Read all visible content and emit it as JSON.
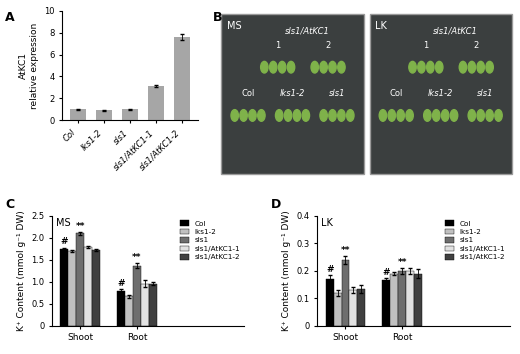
{
  "chart_data": [
    {
      "panel": "A",
      "type": "bar",
      "y_label": "AtKC1\nrelative expression",
      "categories": [
        "Col",
        "lks1-2",
        "sls1",
        "sls1/AtKC1-1",
        "sls1/AtKC1-2"
      ],
      "values": [
        1.0,
        0.9,
        1.0,
        3.1,
        7.6
      ],
      "errors": [
        0.05,
        0.05,
        0.05,
        0.1,
        0.25
      ],
      "color": "#a6a6a6",
      "ylim": [
        0,
        10
      ],
      "yticks": [
        0,
        2,
        4,
        6,
        8,
        10
      ]
    },
    {
      "panel": "C",
      "type": "bar",
      "title": "MS",
      "y_label": "K⁺ Content (mmol g⁻¹ DW)",
      "categories": [
        "Shoot",
        "Root"
      ],
      "series": [
        {
          "name": "Col",
          "color": "#000000",
          "values": [
            1.75,
            0.8
          ],
          "errors": [
            0.03,
            0.04
          ]
        },
        {
          "name": "lks1-2",
          "color": "#c0c0c0",
          "values": [
            1.7,
            0.67
          ],
          "errors": [
            0.02,
            0.03
          ]
        },
        {
          "name": "sls1",
          "color": "#6e6e6e",
          "values": [
            2.1,
            1.37
          ],
          "errors": [
            0.03,
            0.06
          ]
        },
        {
          "name": "sls1/AtKC1-1",
          "color": "#e2e2e2",
          "values": [
            1.8,
            0.95
          ],
          "errors": [
            0.02,
            0.08
          ]
        },
        {
          "name": "sls1/AtKC1-2",
          "color": "#404040",
          "values": [
            1.72,
            0.96
          ],
          "errors": [
            0.02,
            0.03
          ]
        }
      ],
      "annotations": [
        {
          "text": "#",
          "series": "Col",
          "category": "Shoot"
        },
        {
          "text": "**",
          "series": "sls1",
          "category": "Shoot"
        },
        {
          "text": "#",
          "series": "Col",
          "category": "Root"
        },
        {
          "text": "**",
          "series": "sls1",
          "category": "Root"
        }
      ],
      "ylim": [
        0,
        2.5
      ],
      "yticks": [
        0,
        {
          "value": 0.5,
          "label": "0.5"
        },
        {
          "value": 1.0,
          "label": "1.0"
        },
        {
          "value": 1.5,
          "label": "1.5"
        },
        {
          "value": 2.0,
          "label": "2.0"
        },
        {
          "value": 2.5,
          "label": "2.5"
        }
      ],
      "legend": "upper right"
    },
    {
      "panel": "D",
      "type": "bar",
      "title": "LK",
      "y_label": "K⁺ Content (mmol g⁻¹ DW)",
      "categories": [
        "Shoot",
        "Root"
      ],
      "series": [
        {
          "name": "Col",
          "color": "#000000",
          "values": [
            0.17,
            0.165
          ],
          "errors": [
            0.015,
            0.01
          ]
        },
        {
          "name": "lks1-2",
          "color": "#c0c0c0",
          "values": [
            0.12,
            0.19
          ],
          "errors": [
            0.01,
            0.005
          ]
        },
        {
          "name": "sls1",
          "color": "#6e6e6e",
          "values": [
            0.24,
            0.2
          ],
          "errors": [
            0.015,
            0.01
          ]
        },
        {
          "name": "sls1/AtKC1-1",
          "color": "#e2e2e2",
          "values": [
            0.13,
            0.2
          ],
          "errors": [
            0.01,
            0.01
          ]
        },
        {
          "name": "sls1/AtKC1-2",
          "color": "#404040",
          "values": [
            0.135,
            0.19
          ],
          "errors": [
            0.015,
            0.015
          ]
        }
      ],
      "annotations": [
        {
          "text": "#",
          "series": "Col",
          "category": "Shoot"
        },
        {
          "text": "**",
          "series": "sls1",
          "category": "Shoot"
        },
        {
          "text": "#",
          "series": "Col",
          "category": "Root"
        },
        {
          "text": "**",
          "series": "sls1",
          "category": "Root"
        }
      ],
      "ylim": [
        0,
        0.4
      ],
      "yticks": [
        0,
        0.1,
        0.2,
        0.3,
        0.4
      ],
      "legend": "upper right"
    }
  ],
  "photo_panel": {
    "panel": "B",
    "plates": [
      {
        "medium": "MS",
        "line_label": "sls1/AtKC1",
        "line_numbers": [
          "1",
          "2"
        ],
        "labels": [
          "Col",
          "lks1-2",
          "sls1"
        ]
      },
      {
        "medium": "LK",
        "line_label": "sls1/AtKC1",
        "line_numbers": [
          "1",
          "2"
        ],
        "labels": [
          "Col",
          "lks1-2",
          "sls1"
        ]
      }
    ]
  }
}
